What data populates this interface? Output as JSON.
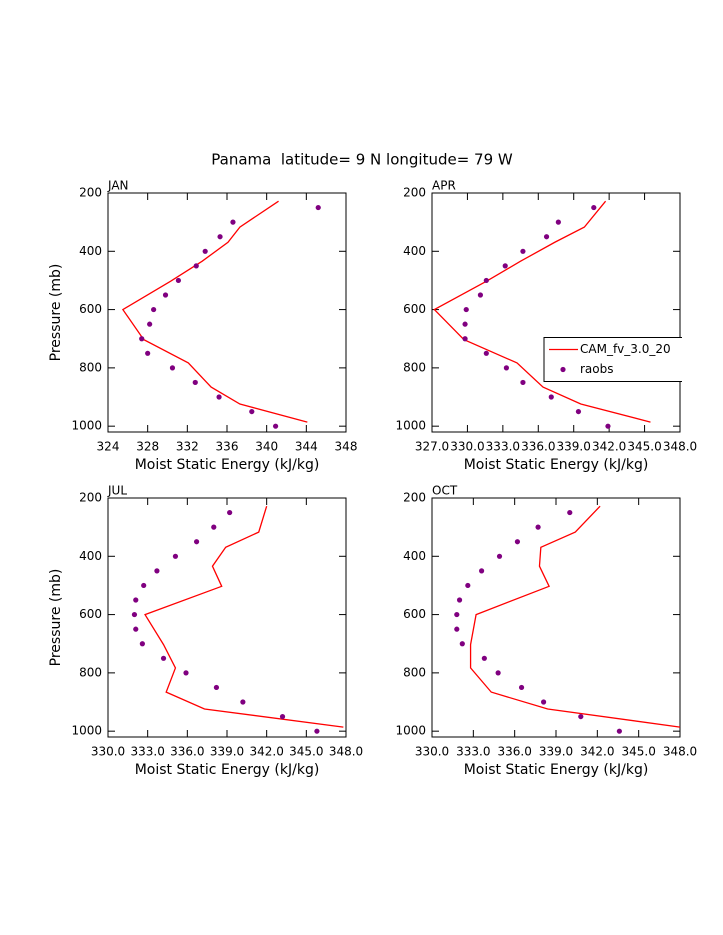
{
  "title": "Panama  latitude= 9 N longitude= 79 W",
  "chart_data": [
    {
      "type": "line",
      "label": "JAN",
      "xlabel": "Moist Static Energy (kJ/kg)",
      "ylabel": "Pressure (mb)",
      "xlim": [
        324,
        348
      ],
      "xticks": [
        324,
        328,
        332,
        336,
        340,
        344,
        348
      ],
      "ylim": [
        1020,
        200
      ],
      "yticks": [
        200,
        400,
        600,
        800,
        1000
      ],
      "series": [
        {
          "type": "line",
          "color": "#ff0000",
          "x": [
            341.2,
            337.3,
            336.1,
            333.5,
            330.3,
            325.5,
            327.6,
            332.1,
            334.4,
            337.3,
            344.1
          ],
          "y": [
            228,
            317,
            369,
            434,
            503,
            600,
            703,
            783,
            866,
            924,
            986
          ]
        },
        {
          "type": "scatter",
          "color": "#800080",
          "x": [
            345.2,
            336.6,
            335.3,
            333.8,
            332.9,
            331.1,
            329.8,
            328.6,
            328.2,
            327.4,
            328.0,
            330.5,
            332.8,
            335.2,
            338.5,
            340.9
          ],
          "y": [
            250,
            300,
            350,
            400,
            450,
            500,
            550,
            600,
            650,
            700,
            750,
            800,
            850,
            900,
            950,
            1000
          ]
        }
      ]
    },
    {
      "type": "line",
      "label": "APR",
      "xlabel": "Moist Static Energy (kJ/kg)",
      "xlim": [
        327,
        348
      ],
      "xticks": [
        {
          "value": 327,
          "label": "327.0"
        },
        {
          "value": 330,
          "label": "330.0"
        },
        {
          "value": 333,
          "label": "333.0"
        },
        {
          "value": 336,
          "label": "336.0"
        },
        {
          "value": 339,
          "label": "339.0"
        },
        {
          "value": 342,
          "label": "342.0"
        },
        {
          "value": 345,
          "label": "345.0"
        },
        {
          "value": 348,
          "label": "348.0"
        }
      ],
      "ylim": [
        1020,
        200
      ],
      "yticks": [
        200,
        400,
        600,
        800,
        1000
      ],
      "legend": "right",
      "series": [
        {
          "type": "line",
          "name": "CAM_fv_3.0_20",
          "color": "#ff0000",
          "x": [
            341.7,
            339.9,
            337.4,
            334.5,
            331.6,
            327.2,
            329.7,
            334.2,
            336.4,
            339.6,
            345.5
          ],
          "y": [
            228,
            317,
            369,
            434,
            503,
            600,
            703,
            783,
            866,
            924,
            986
          ]
        },
        {
          "type": "scatter",
          "name": "raobs",
          "color": "#800080",
          "x": [
            340.7,
            337.7,
            336.7,
            334.7,
            333.2,
            331.6,
            331.1,
            329.9,
            329.8,
            329.8,
            331.6,
            333.3,
            334.7,
            337.1,
            339.4,
            341.9
          ],
          "y": [
            250,
            300,
            350,
            400,
            450,
            500,
            550,
            600,
            650,
            700,
            750,
            800,
            850,
            900,
            950,
            1000
          ]
        }
      ]
    },
    {
      "type": "line",
      "label": "JUL",
      "xlabel": "Moist Static Energy (kJ/kg)",
      "ylabel": "Pressure (mb)",
      "xlim": [
        330,
        348
      ],
      "xticks": [
        {
          "value": 330,
          "label": "330.0"
        },
        {
          "value": 333,
          "label": "333.0"
        },
        {
          "value": 336,
          "label": "336.0"
        },
        {
          "value": 339,
          "label": "339.0"
        },
        {
          "value": 342,
          "label": "342.0"
        },
        {
          "value": 345,
          "label": "345.0"
        },
        {
          "value": 348,
          "label": "348.0"
        }
      ],
      "ylim": [
        1020,
        200
      ],
      "yticks": [
        200,
        400,
        600,
        800,
        1000
      ],
      "series": [
        {
          "type": "line",
          "color": "#ff0000",
          "x": [
            342.0,
            341.4,
            338.9,
            337.9,
            338.6,
            332.8,
            334.2,
            335.1,
            334.4,
            337.3,
            347.8
          ],
          "y": [
            228,
            317,
            369,
            434,
            503,
            600,
            703,
            783,
            866,
            924,
            986
          ]
        },
        {
          "type": "scatter",
          "color": "#800080",
          "x": [
            339.2,
            338.0,
            336.7,
            335.1,
            333.7,
            332.7,
            332.1,
            332.0,
            332.1,
            332.6,
            334.2,
            335.9,
            338.2,
            340.2,
            343.2,
            345.8
          ],
          "y": [
            250,
            300,
            350,
            400,
            450,
            500,
            550,
            600,
            650,
            700,
            750,
            800,
            850,
            900,
            950,
            1000
          ]
        }
      ]
    },
    {
      "type": "line",
      "label": "OCT",
      "xlabel": "Moist Static Energy (kJ/kg)",
      "xlim": [
        330,
        348
      ],
      "xticks": [
        {
          "value": 330,
          "label": "330.0"
        },
        {
          "value": 333,
          "label": "333.0"
        },
        {
          "value": 336,
          "label": "336.0"
        },
        {
          "value": 339,
          "label": "339.0"
        },
        {
          "value": 342,
          "label": "342.0"
        },
        {
          "value": 345,
          "label": "345.0"
        },
        {
          "value": 348,
          "label": "348.0"
        }
      ],
      "ylim": [
        1020,
        200
      ],
      "yticks": [
        200,
        400,
        600,
        800,
        1000
      ],
      "series": [
        {
          "type": "line",
          "color": "#ff0000",
          "x": [
            342.2,
            340.4,
            337.9,
            337.8,
            338.5,
            333.2,
            332.8,
            332.8,
            334.3,
            338.4,
            348.0
          ],
          "y": [
            228,
            317,
            369,
            434,
            503,
            600,
            703,
            783,
            866,
            924,
            986
          ]
        },
        {
          "type": "scatter",
          "color": "#800080",
          "x": [
            340.0,
            337.7,
            336.2,
            334.9,
            333.6,
            332.6,
            332.0,
            331.8,
            331.8,
            332.2,
            333.8,
            334.8,
            336.5,
            338.1,
            340.8,
            343.6
          ],
          "y": [
            250,
            300,
            350,
            400,
            450,
            500,
            550,
            600,
            650,
            700,
            750,
            800,
            850,
            900,
            950,
            1000
          ]
        }
      ]
    }
  ]
}
